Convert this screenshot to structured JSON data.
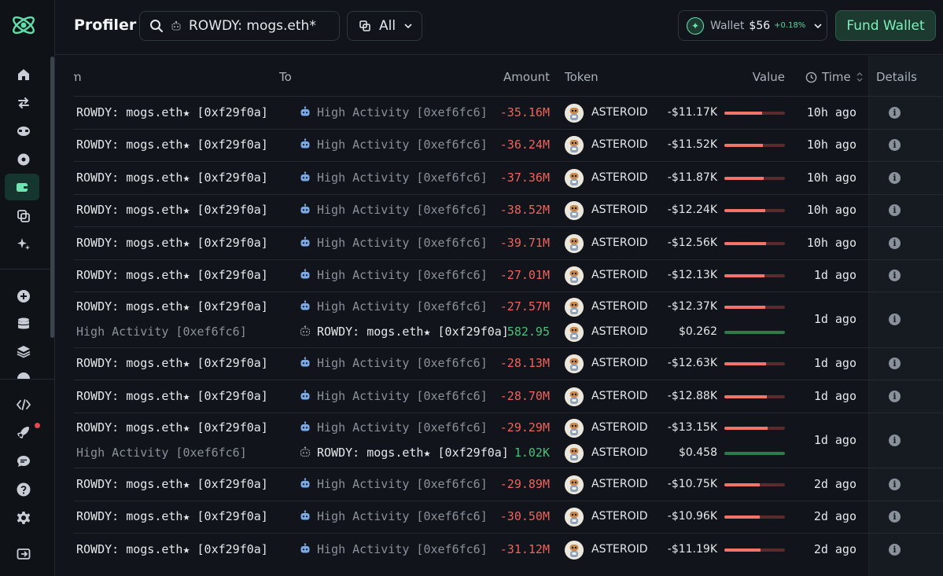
{
  "header": {
    "title": "Profiler",
    "search_text": "ROWDY: mogs.eth*",
    "filter_label": "All",
    "wallet_label": "Wallet",
    "wallet_amount": "$56",
    "wallet_change": "+0.18%",
    "fund_label": "Fund Wallet"
  },
  "sidebar": {
    "icons": [
      "home-icon",
      "swap-icon",
      "glasses-icon",
      "target-icon",
      "wallet-icon",
      "copy-icon",
      "sparkle-icon",
      "plus-circle-icon",
      "database-icon",
      "layers-icon",
      "code-icon",
      "rocket-icon",
      "chat-icon",
      "help-icon",
      "settings-icon",
      "logout-icon"
    ],
    "active": "wallet-icon"
  },
  "columns": {
    "from": "m",
    "to": "To",
    "amount": "Amount",
    "token": "Token",
    "value": "Value",
    "time": "Time",
    "details": "Details"
  },
  "colors": {
    "negative": "#f0625c",
    "positive": "#4fbf7a",
    "accent": "#6fe3b0"
  },
  "rows": [
    {
      "lines": [
        {
          "from": "ROWDY: mogs.eth★ [0xf29f0a]",
          "to": "High Activity [0xef6fc6]",
          "amount": "-35.16M",
          "token": "ASTEROID",
          "value": "-$11.17K",
          "bar": 0.62
        }
      ],
      "time": "10h ago"
    },
    {
      "lines": [
        {
          "from": "ROWDY: mogs.eth★ [0xf29f0a]",
          "to": "High Activity [0xef6fc6]",
          "amount": "-36.24M",
          "token": "ASTEROID",
          "value": "-$11.52K",
          "bar": 0.63
        }
      ],
      "time": "10h ago"
    },
    {
      "lines": [
        {
          "from": "ROWDY: mogs.eth★ [0xf29f0a]",
          "to": "High Activity [0xef6fc6]",
          "amount": "-37.36M",
          "token": "ASTEROID",
          "value": "-$11.87K",
          "bar": 0.65
        }
      ],
      "time": "10h ago"
    },
    {
      "lines": [
        {
          "from": "ROWDY: mogs.eth★ [0xf29f0a]",
          "to": "High Activity [0xef6fc6]",
          "amount": "-38.52M",
          "token": "ASTEROID",
          "value": "-$12.24K",
          "bar": 0.67
        }
      ],
      "time": "10h ago"
    },
    {
      "lines": [
        {
          "from": "ROWDY: mogs.eth★ [0xf29f0a]",
          "to": "High Activity [0xef6fc6]",
          "amount": "-39.71M",
          "token": "ASTEROID",
          "value": "-$12.56K",
          "bar": 0.69
        }
      ],
      "time": "10h ago"
    },
    {
      "lines": [
        {
          "from": "ROWDY: mogs.eth★ [0xf29f0a]",
          "to": "High Activity [0xef6fc6]",
          "amount": "-27.01M",
          "token": "ASTEROID",
          "value": "-$12.13K",
          "bar": 0.66
        }
      ],
      "time": "1d ago"
    },
    {
      "lines": [
        {
          "from": "ROWDY: mogs.eth★ [0xf29f0a]",
          "to": "High Activity [0xef6fc6]",
          "amount": "-27.57M",
          "token": "ASTEROID",
          "value": "-$12.37K",
          "bar": 0.68
        },
        {
          "from": "High Activity [0xef6fc6]",
          "to": "ROWDY: mogs.eth★ [0xf29f0a]",
          "amount": "582.95",
          "token": "ASTEROID",
          "value": "$0.262",
          "bar": 1.0,
          "positive": true
        }
      ],
      "time": "1d ago"
    },
    {
      "lines": [
        {
          "from": "ROWDY: mogs.eth★ [0xf29f0a]",
          "to": "High Activity [0xef6fc6]",
          "amount": "-28.13M",
          "token": "ASTEROID",
          "value": "-$12.63K",
          "bar": 0.69
        }
      ],
      "time": "1d ago"
    },
    {
      "lines": [
        {
          "from": "ROWDY: mogs.eth★ [0xf29f0a]",
          "to": "High Activity [0xef6fc6]",
          "amount": "-28.70M",
          "token": "ASTEROID",
          "value": "-$12.88K",
          "bar": 0.7
        }
      ],
      "time": "1d ago"
    },
    {
      "lines": [
        {
          "from": "ROWDY: mogs.eth★ [0xf29f0a]",
          "to": "High Activity [0xef6fc6]",
          "amount": "-29.29M",
          "token": "ASTEROID",
          "value": "-$13.15K",
          "bar": 0.72
        },
        {
          "from": "High Activity [0xef6fc6]",
          "to": "ROWDY: mogs.eth★ [0xf29f0a]",
          "amount": "1.02K",
          "token": "ASTEROID",
          "value": "$0.458",
          "bar": 1.0,
          "positive": true
        }
      ],
      "time": "1d ago"
    },
    {
      "lines": [
        {
          "from": "ROWDY: mogs.eth★ [0xf29f0a]",
          "to": "High Activity [0xef6fc6]",
          "amount": "-29.89M",
          "token": "ASTEROID",
          "value": "-$10.75K",
          "bar": 0.58
        }
      ],
      "time": "2d ago"
    },
    {
      "lines": [
        {
          "from": "ROWDY: mogs.eth★ [0xf29f0a]",
          "to": "High Activity [0xef6fc6]",
          "amount": "-30.50M",
          "token": "ASTEROID",
          "value": "-$10.96K",
          "bar": 0.59
        }
      ],
      "time": "2d ago"
    },
    {
      "lines": [
        {
          "from": "ROWDY: mogs.eth★ [0xf29f0a]",
          "to": "High Activity [0xef6fc6]",
          "amount": "-31.12M",
          "token": "ASTEROID",
          "value": "-$11.19K",
          "bar": 0.6
        }
      ],
      "time": "2d ago"
    }
  ]
}
